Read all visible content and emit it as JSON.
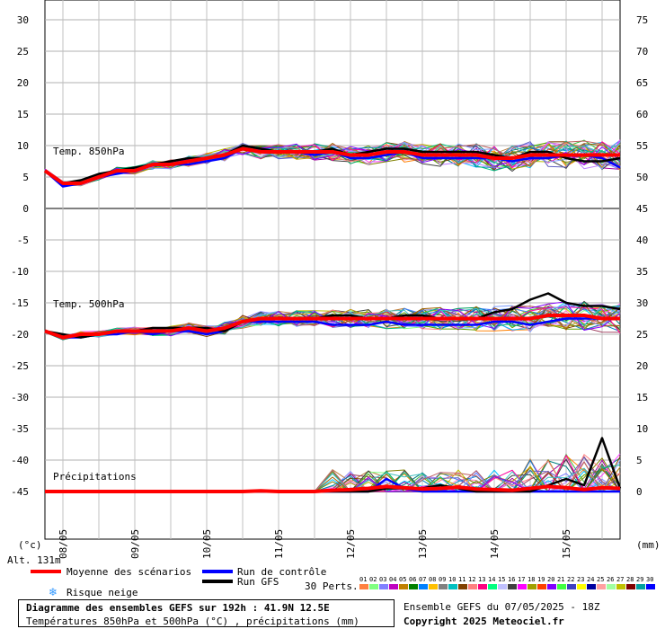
{
  "chart_data": {
    "type": "line",
    "title": "Diagramme des ensembles GEFS sur 192h : 41.9N 12.5E",
    "subtitle": "Températures 850hPa et 500hPa (°C) , précipitations (mm)",
    "left_axis_unit": "(°c)",
    "right_axis_unit": "(mm)",
    "altitude": "Alt. 131m",
    "left_ticks": [
      "30",
      "25",
      "20",
      "15",
      "10",
      "5",
      "0",
      "-5",
      "-10",
      "-15",
      "-20",
      "-25",
      "-30",
      "-35",
      "-40",
      "-45"
    ],
    "left_tick_values": [
      30,
      25,
      20,
      15,
      10,
      5,
      0,
      -5,
      -10,
      -15,
      -20,
      -25,
      -30,
      -35,
      -40,
      -45
    ],
    "right_ticks": [
      "75",
      "70",
      "65",
      "60",
      "55",
      "50",
      "45",
      "40",
      "35",
      "30",
      "25",
      "20",
      "15",
      "10",
      "5",
      "0"
    ],
    "x_ticks": [
      "08/05",
      "09/05",
      "10/05",
      "11/05",
      "12/05",
      "13/05",
      "14/05",
      "15/05"
    ],
    "x_tick_hours": [
      6,
      30,
      54,
      78,
      102,
      126,
      150,
      174
    ],
    "x_range_hours": [
      0,
      192
    ],
    "grid": true,
    "panel_labels": {
      "t850": "Temp. 850hPa",
      "t500": "Temp. 500hPa",
      "precip": "Précipitations"
    },
    "time_hours": [
      0,
      6,
      12,
      18,
      24,
      30,
      36,
      42,
      48,
      54,
      60,
      66,
      72,
      78,
      84,
      90,
      96,
      102,
      108,
      114,
      120,
      126,
      132,
      138,
      144,
      150,
      156,
      162,
      168,
      174,
      180,
      186,
      192
    ],
    "series": [
      {
        "name": "Moyenne des scénarios",
        "panel": "t850",
        "color": "#ff0000",
        "values": [
          6,
          4,
          4,
          5,
          6,
          6,
          7,
          7,
          7.5,
          8,
          8.5,
          9.5,
          9,
          9,
          9,
          9,
          9,
          8.5,
          8.5,
          9,
          9,
          8.5,
          8.5,
          8.5,
          8.5,
          8,
          8,
          8.5,
          8.5,
          8.5,
          8.5,
          8.5,
          8.5
        ]
      },
      {
        "name": "Run GFS",
        "panel": "t850",
        "color": "#000000",
        "values": [
          6,
          4,
          4.5,
          5.5,
          6,
          6.5,
          7,
          7.5,
          8,
          8,
          8.5,
          10,
          9.5,
          9,
          9,
          9,
          9.5,
          8.5,
          9,
          9.5,
          9.5,
          9,
          9,
          9,
          9,
          8.5,
          8,
          9,
          9,
          8,
          7.5,
          7.5,
          8
        ]
      },
      {
        "name": "Run de contrôle",
        "panel": "t850",
        "color": "#0000ff",
        "values": [
          6,
          3.5,
          4,
          5,
          5.5,
          6,
          7,
          7,
          7,
          7.5,
          8,
          9.5,
          9,
          9,
          9,
          8.5,
          9,
          8,
          8,
          8.5,
          9,
          8,
          8,
          8,
          8,
          8,
          7.5,
          8,
          8,
          8.5,
          8.5,
          8,
          6.5
        ]
      },
      {
        "name": "Moyenne des scénarios",
        "panel": "t500",
        "color": "#ff0000",
        "values": [
          -19.5,
          -20.5,
          -20,
          -20,
          -19.5,
          -19.5,
          -19.5,
          -19.5,
          -19,
          -19.5,
          -19,
          -18,
          -17.5,
          -17.5,
          -17.5,
          -17.5,
          -17.5,
          -17.5,
          -17.5,
          -17.5,
          -17.5,
          -17.5,
          -17.5,
          -17.5,
          -17.5,
          -17.5,
          -17.5,
          -17.5,
          -17,
          -17,
          -17,
          -17.5,
          -17.5
        ]
      },
      {
        "name": "Run GFS",
        "panel": "t500",
        "color": "#000000",
        "values": [
          -19.5,
          -20,
          -20.5,
          -20,
          -19.5,
          -19.5,
          -19,
          -19,
          -19,
          -19,
          -19.5,
          -18,
          -17.5,
          -17.5,
          -17.5,
          -17.5,
          -17,
          -17,
          -17.5,
          -17.5,
          -17,
          -17,
          -17.5,
          -17.5,
          -17.5,
          -16.5,
          -16,
          -14.5,
          -13.5,
          -15,
          -15.5,
          -15.5,
          -16
        ]
      },
      {
        "name": "Run de contrôle",
        "panel": "t500",
        "color": "#0000ff",
        "values": [
          -19.5,
          -20.5,
          -20.5,
          -20,
          -20,
          -19.5,
          -20,
          -19.5,
          -19.5,
          -20,
          -19.5,
          -18,
          -18,
          -18,
          -18,
          -18,
          -18.5,
          -18.5,
          -18.5,
          -18,
          -18.5,
          -18.5,
          -18.5,
          -18.5,
          -18.5,
          -18,
          -18,
          -18.5,
          -18,
          -17.5,
          -17.5,
          -17.5,
          -17.5
        ]
      },
      {
        "name": "Moyenne des scénarios",
        "panel": "precip",
        "color": "#ff0000",
        "values": [
          0,
          0,
          0,
          0,
          0,
          0,
          0,
          0,
          0,
          0,
          0,
          0,
          0.1,
          0,
          0,
          0,
          0.2,
          0.3,
          0.5,
          0.8,
          0.6,
          0.4,
          0.5,
          0.7,
          0.4,
          0.3,
          0.2,
          0.5,
          0.8,
          0.6,
          0.3,
          0.6,
          0.5
        ]
      },
      {
        "name": "Run GFS",
        "panel": "precip",
        "color": "#000000",
        "values": [
          0,
          0,
          0,
          0,
          0,
          0,
          0,
          0,
          0,
          0,
          0,
          0,
          0,
          0,
          0,
          0,
          0,
          0,
          0,
          0.5,
          0.5,
          0.5,
          1,
          0.5,
          0,
          0,
          0,
          0,
          1,
          2,
          1,
          8.5,
          0.5
        ]
      },
      {
        "name": "Run de contrôle",
        "panel": "precip",
        "color": "#0000ff",
        "values": [
          0,
          0,
          0,
          0,
          0,
          0,
          0,
          0,
          0,
          0,
          0,
          0,
          0,
          0,
          0,
          0,
          0,
          0,
          0,
          2,
          0.5,
          0,
          0,
          0,
          0,
          0,
          0,
          0,
          0,
          0,
          0,
          0,
          0
        ]
      }
    ],
    "perturbation_colors": [
      "#ff80c0",
      "#40c040",
      "#8080ff",
      "#c08040",
      "#a000a0",
      "#008080",
      "#c0c000",
      "#4080ff",
      "#ff8000",
      "#80ff80",
      "#804000",
      "#00c0ff",
      "#a04060",
      "#60a000",
      "#ff40ff",
      "#0080c0",
      "#808000",
      "#c080ff",
      "#404040",
      "#00a060",
      "#ff8080",
      "#6060c0",
      "#c0a000",
      "#00c080",
      "#ff00a0",
      "#80a0ff",
      "#a06000",
      "#40c0c0",
      "#c06060",
      "#8000ff"
    ]
  },
  "legend": {
    "mean": "Moyenne des scénarios",
    "control": "Run de contrôle",
    "gfs": "Run GFS",
    "snow": "Risque neige",
    "perts": "30 Perts.",
    "pert_numbers": [
      "01",
      "02",
      "03",
      "04",
      "05",
      "06",
      "07",
      "08",
      "09",
      "10",
      "11",
      "12",
      "13",
      "14",
      "15",
      "16",
      "17",
      "18",
      "19",
      "20",
      "21",
      "22",
      "23",
      "24",
      "25",
      "26",
      "27",
      "28",
      "29",
      "30"
    ],
    "pert_swatch_colors": [
      "#ff8040",
      "#80ff80",
      "#8080ff",
      "#c000c0",
      "#c08000",
      "#008000",
      "#0080ff",
      "#ffc000",
      "#808080",
      "#00c0c0",
      "#804000",
      "#ff8080",
      "#ff0080",
      "#00ff80",
      "#c0c0ff",
      "#404040",
      "#ff00ff",
      "#a0a000",
      "#ff4000",
      "#8000ff",
      "#40ff40",
      "#4040c0",
      "#ffff00",
      "#0000a0",
      "#ffa0a0",
      "#a0ffa0",
      "#c0c000",
      "#800000",
      "#00a0a0",
      "#0000ff"
    ],
    "mean_color": "#ff0000",
    "control_color": "#0000ff",
    "gfs_color": "#000000",
    "snow_color": "#3399ff"
  },
  "footer": {
    "title": "Diagramme des ensembles GEFS sur 192h : 41.9N 12.5E",
    "subtitle": "Températures 850hPa et 500hPa (°C) , précipitations (mm)",
    "ensemble_info": "Ensemble GEFS du 07/05/2025 - 18Z",
    "copyright": "Copyright 2025 Meteociel.fr"
  }
}
